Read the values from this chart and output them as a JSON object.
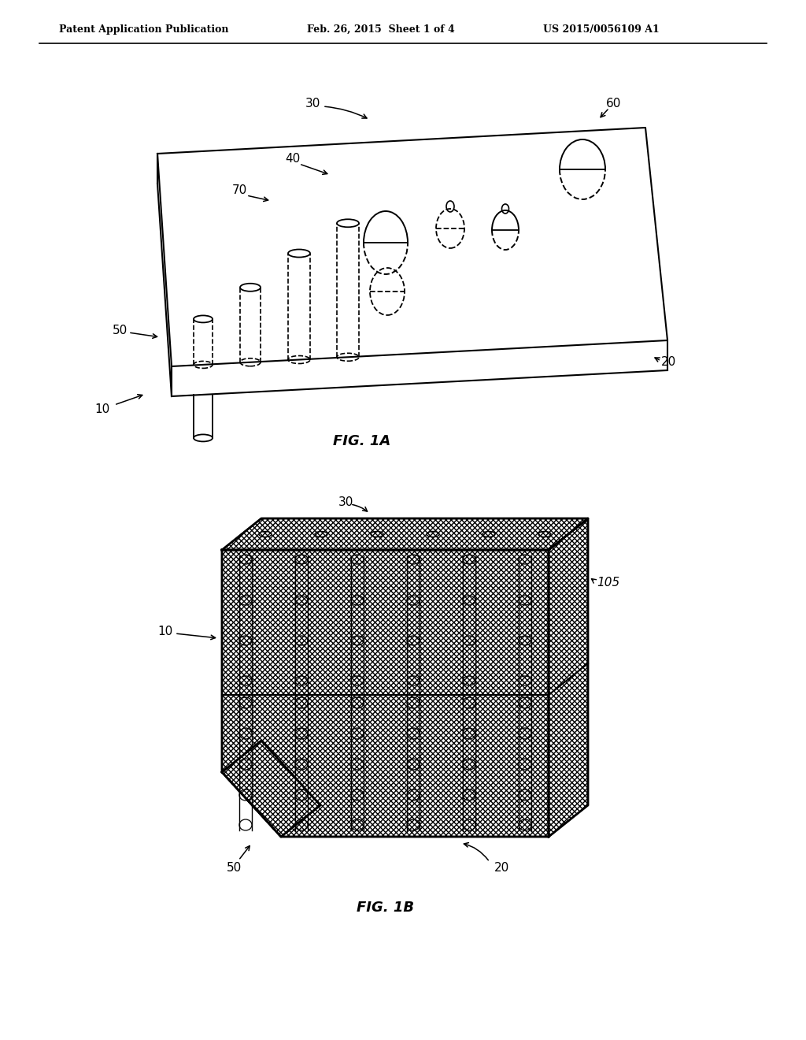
{
  "bg_color": "#ffffff",
  "line_color": "#000000",
  "header_left": "Patent Application Publication",
  "header_mid": "Feb. 26, 2015  Sheet 1 of 4",
  "header_right": "US 2015/0056109 A1",
  "fig1a_label": "FIG. 1A",
  "fig1b_label": "FIG. 1B"
}
